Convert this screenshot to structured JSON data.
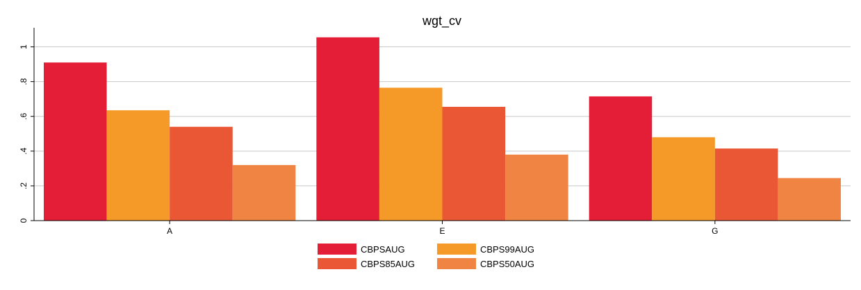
{
  "chart_data": {
    "type": "bar",
    "title": "wgt_cv",
    "categories": [
      "A",
      "E",
      "G"
    ],
    "series": [
      {
        "name": "CBPSAUG",
        "color": "#e41e37",
        "values": [
          0.91,
          1.055,
          0.715
        ]
      },
      {
        "name": "CBPS99AUG",
        "color": "#f59a28",
        "values": [
          0.635,
          0.765,
          0.48
        ]
      },
      {
        "name": "CBPS85AUG",
        "color": "#ea5735",
        "values": [
          0.54,
          0.655,
          0.415
        ]
      },
      {
        "name": "CBPS50AUG",
        "color": "#f08443",
        "values": [
          0.32,
          0.38,
          0.245
        ]
      }
    ],
    "yticks": [
      0,
      0.2,
      0.4,
      0.6,
      0.8,
      1
    ],
    "ytick_labels": [
      "0",
      ".2",
      ".4",
      ".6",
      ".8",
      "1"
    ],
    "ylim": [
      0,
      1.11
    ],
    "grid": true,
    "legend_position": "bottom"
  }
}
